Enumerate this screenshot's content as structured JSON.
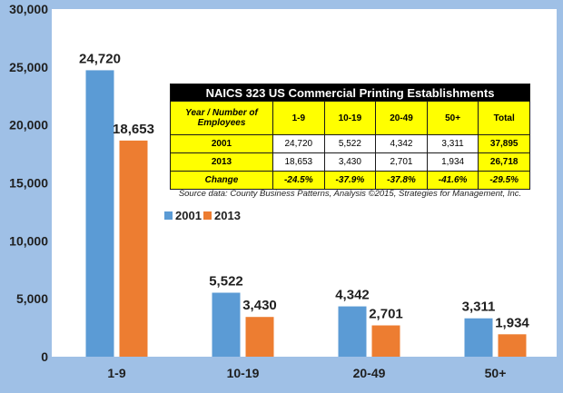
{
  "chart_data": {
    "type": "bar",
    "categories": [
      "1-9",
      "10-19",
      "20-49",
      "50+"
    ],
    "series": [
      {
        "name": "2001",
        "values": [
          24720,
          5522,
          4342,
          3311
        ],
        "labels": [
          "24,720",
          "5,522",
          "4,342",
          "3,311"
        ],
        "color": "#5b9bd5"
      },
      {
        "name": "2013",
        "values": [
          18653,
          3430,
          2701,
          1934
        ],
        "labels": [
          "18,653",
          "3,430",
          "2,701",
          "1,934"
        ],
        "color": "#ed7d31"
      }
    ],
    "ylim": [
      0,
      30000
    ],
    "yticks": [
      0,
      5000,
      10000,
      15000,
      20000,
      25000,
      30000
    ],
    "ytick_labels": [
      "0",
      "5,000",
      "10,000",
      "15,000",
      "20,000",
      "25,000",
      "30,000"
    ],
    "grid": false,
    "legend": "center-left"
  },
  "table": {
    "title": "NAICS 323 US Commercial Printing Establishments",
    "header": [
      "Year / Number of Employees",
      "1-9",
      "10-19",
      "20-49",
      "50+",
      "Total"
    ],
    "rows": [
      [
        "2001",
        "24,720",
        "5,522",
        "4,342",
        "3,311",
        "37,895"
      ],
      [
        "2013",
        "18,653",
        "3,430",
        "2,701",
        "1,934",
        "26,718"
      ],
      [
        "Change",
        "-24.5%",
        "-37.9%",
        "-37.8%",
        "-41.6%",
        "-29.5%"
      ]
    ],
    "source": "Source data: County Business Patterns, Analysis ©2015, Strategies for Management, Inc."
  }
}
